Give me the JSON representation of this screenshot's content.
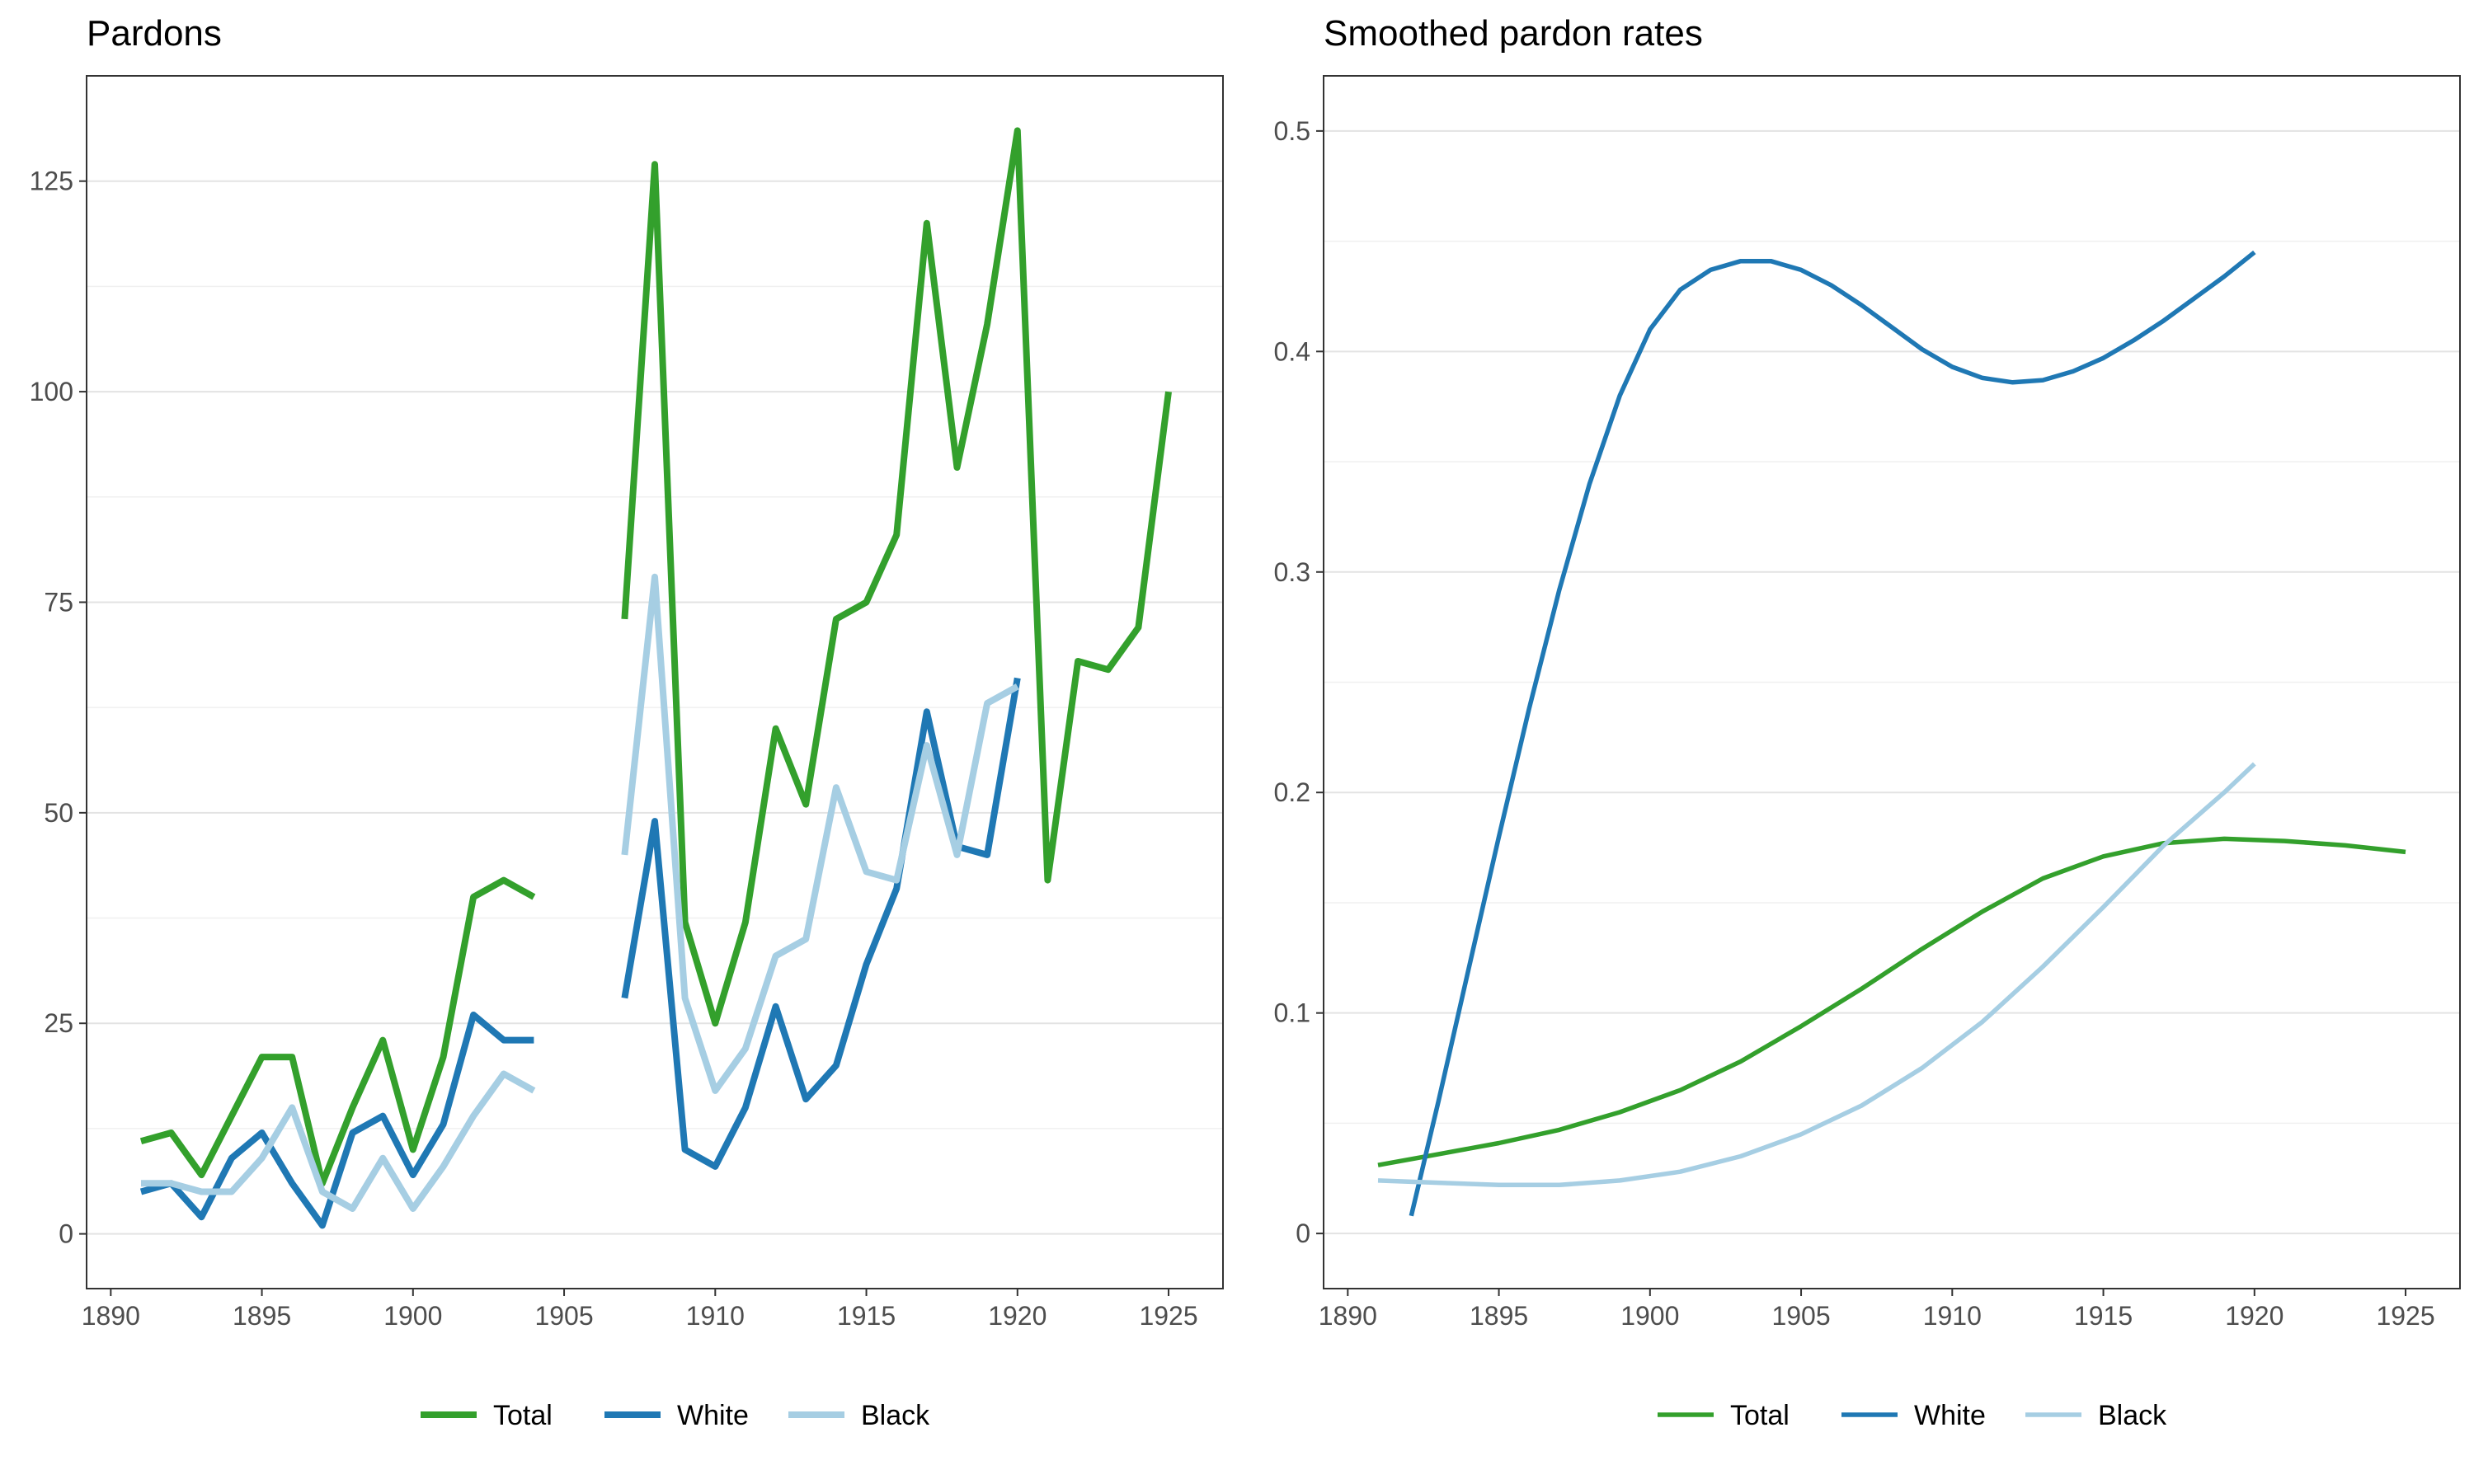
{
  "colors": {
    "Total": "#33a02c",
    "White": "#1f78b4",
    "Black": "#a6cee3"
  },
  "chart_data": [
    {
      "type": "line",
      "title": "Pardons",
      "xlabel": "",
      "ylabel": "",
      "xlim": [
        1889.2,
        1926.8
      ],
      "ylim": [
        -6.5,
        137.5
      ],
      "xticks": [
        1890,
        1895,
        1900,
        1905,
        1910,
        1915,
        1920,
        1925
      ],
      "yticks": [
        0,
        25,
        50,
        75,
        100,
        125
      ],
      "grid": true,
      "legend": "bottom",
      "series": [
        {
          "name": "Total",
          "points": [
            [
              1891,
              11
            ],
            [
              1892,
              12
            ],
            [
              1893,
              7
            ],
            [
              1894,
              14
            ],
            [
              1895,
              21
            ],
            [
              1896,
              21
            ],
            [
              1897,
              6
            ],
            [
              1898,
              15
            ],
            [
              1899,
              23
            ],
            [
              1900,
              10
            ],
            [
              1901,
              21
            ],
            [
              1902,
              40
            ],
            [
              1903,
              42
            ],
            [
              1904,
              40
            ],
            null,
            [
              1907,
              73
            ],
            [
              1908,
              127
            ],
            [
              1909,
              37
            ],
            [
              1910,
              25
            ],
            [
              1911,
              37
            ],
            [
              1912,
              60
            ],
            [
              1913,
              51
            ],
            [
              1914,
              73
            ],
            [
              1915,
              75
            ],
            [
              1916,
              83
            ],
            [
              1917,
              120
            ],
            [
              1918,
              91
            ],
            [
              1919,
              108
            ],
            [
              1920,
              131
            ],
            [
              1921,
              42
            ],
            [
              1922,
              68
            ],
            [
              1923,
              67
            ],
            [
              1924,
              72
            ],
            [
              1925,
              100
            ]
          ]
        },
        {
          "name": "White",
          "points": [
            [
              1891,
              5
            ],
            [
              1892,
              6
            ],
            [
              1893,
              2
            ],
            [
              1894,
              9
            ],
            [
              1895,
              12
            ],
            [
              1896,
              6
            ],
            [
              1897,
              1
            ],
            [
              1898,
              12
            ],
            [
              1899,
              14
            ],
            [
              1900,
              7
            ],
            [
              1901,
              13
            ],
            [
              1902,
              26
            ],
            [
              1903,
              23
            ],
            [
              1904,
              23
            ],
            null,
            [
              1907,
              28
            ],
            [
              1908,
              49
            ],
            [
              1909,
              10
            ],
            [
              1910,
              8
            ],
            [
              1911,
              15
            ],
            [
              1912,
              27
            ],
            [
              1913,
              16
            ],
            [
              1914,
              20
            ],
            [
              1915,
              32
            ],
            [
              1916,
              41
            ],
            [
              1917,
              62
            ],
            [
              1918,
              46
            ],
            [
              1919,
              45
            ],
            [
              1920,
              66
            ]
          ]
        },
        {
          "name": "Black",
          "points": [
            [
              1891,
              6
            ],
            [
              1892,
              6
            ],
            [
              1893,
              5
            ],
            [
              1894,
              5
            ],
            [
              1895,
              9
            ],
            [
              1896,
              15
            ],
            [
              1897,
              5
            ],
            [
              1898,
              3
            ],
            [
              1899,
              9
            ],
            [
              1900,
              3
            ],
            [
              1901,
              8
            ],
            [
              1902,
              14
            ],
            [
              1903,
              19
            ],
            [
              1904,
              17
            ],
            null,
            [
              1907,
              45
            ],
            [
              1908,
              78
            ],
            [
              1909,
              28
            ],
            [
              1910,
              17
            ],
            [
              1911,
              22
            ],
            [
              1912,
              33
            ],
            [
              1913,
              35
            ],
            [
              1914,
              53
            ],
            [
              1915,
              43
            ],
            [
              1916,
              42
            ],
            [
              1917,
              58
            ],
            [
              1918,
              45
            ],
            [
              1919,
              63
            ],
            [
              1920,
              65
            ]
          ]
        }
      ]
    },
    {
      "type": "line",
      "title": "Smoothed pardon rates",
      "xlabel": "",
      "ylabel": "",
      "xlim": [
        1889.2,
        1926.8
      ],
      "ylim": [
        -0.025,
        0.525
      ],
      "xticks": [
        1890,
        1895,
        1900,
        1905,
        1910,
        1915,
        1920,
        1925
      ],
      "yticks": [
        0,
        0.1,
        0.2,
        0.3,
        0.4,
        0.5
      ],
      "ytick_labels": [
        "0",
        "0.1",
        "0.2",
        "0.3",
        "0.4",
        "0.5"
      ],
      "grid": true,
      "legend": "bottom",
      "series": [
        {
          "name": "Total",
          "points": [
            [
              1891,
              0.031
            ],
            [
              1893,
              0.036
            ],
            [
              1895,
              0.041
            ],
            [
              1897,
              0.047
            ],
            [
              1899,
              0.055
            ],
            [
              1901,
              0.065
            ],
            [
              1903,
              0.078
            ],
            [
              1905,
              0.094
            ],
            [
              1907,
              0.111
            ],
            [
              1909,
              0.129
            ],
            [
              1911,
              0.146
            ],
            [
              1913,
              0.161
            ],
            [
              1915,
              0.171
            ],
            [
              1917,
              0.177
            ],
            [
              1919,
              0.179
            ],
            [
              1921,
              0.178
            ],
            [
              1923,
              0.176
            ],
            [
              1925,
              0.173
            ]
          ]
        },
        {
          "name": "White",
          "points": [
            [
              1892.1,
              0.008
            ],
            [
              1893,
              0.06
            ],
            [
              1894,
              0.12
            ],
            [
              1895,
              0.18
            ],
            [
              1896,
              0.238
            ],
            [
              1897,
              0.292
            ],
            [
              1898,
              0.34
            ],
            [
              1899,
              0.38
            ],
            [
              1900,
              0.41
            ],
            [
              1901,
              0.428
            ],
            [
              1902,
              0.437
            ],
            [
              1903,
              0.441
            ],
            [
              1904,
              0.441
            ],
            [
              1905,
              0.437
            ],
            [
              1906,
              0.43
            ],
            [
              1907,
              0.421
            ],
            [
              1908,
              0.411
            ],
            [
              1909,
              0.401
            ],
            [
              1910,
              0.393
            ],
            [
              1911,
              0.388
            ],
            [
              1912,
              0.386
            ],
            [
              1913,
              0.387
            ],
            [
              1914,
              0.391
            ],
            [
              1915,
              0.397
            ],
            [
              1916,
              0.405
            ],
            [
              1917,
              0.414
            ],
            [
              1918,
              0.424
            ],
            [
              1919,
              0.434
            ],
            [
              1920,
              0.445
            ]
          ]
        },
        {
          "name": "Black",
          "points": [
            [
              1891,
              0.024
            ],
            [
              1893,
              0.023
            ],
            [
              1895,
              0.022
            ],
            [
              1897,
              0.022
            ],
            [
              1899,
              0.024
            ],
            [
              1901,
              0.028
            ],
            [
              1903,
              0.035
            ],
            [
              1905,
              0.045
            ],
            [
              1907,
              0.058
            ],
            [
              1909,
              0.075
            ],
            [
              1911,
              0.096
            ],
            [
              1913,
              0.121
            ],
            [
              1915,
              0.148
            ],
            [
              1917,
              0.176
            ],
            [
              1919,
              0.2
            ],
            [
              1920,
              0.213
            ]
          ]
        }
      ]
    }
  ]
}
